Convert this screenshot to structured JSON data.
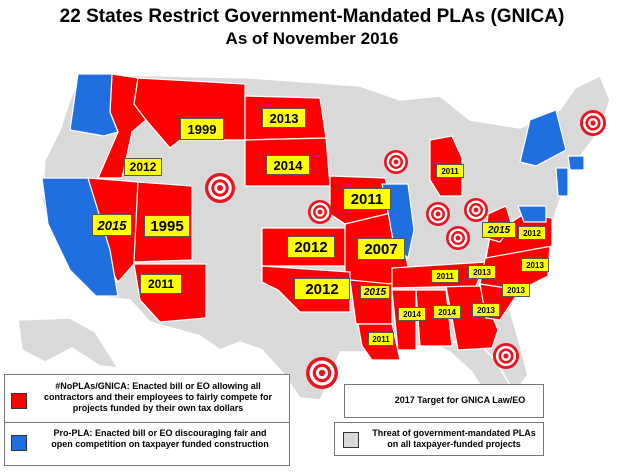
{
  "title": "22 States Restrict Government-Mandated PLAs (GNICA)",
  "subtitle": "As of November 2016",
  "colors": {
    "restrict": "#ff0000",
    "pro_pla": "#1f6fe0",
    "threat": "#d9d9d9",
    "label_bg": "#ffff00",
    "target": "#e8141e"
  },
  "state_years": {
    "WA": "2012",
    "MT": "1999",
    "ND": "2013",
    "SD": "2014",
    "NV": "2015",
    "UT": "1995",
    "AZ": "2011",
    "KS": "2012",
    "MO": "2007",
    "IA": "2011",
    "OK": "2012",
    "AR": "2015",
    "MI": "2011",
    "WV": "2015",
    "VA": "2012",
    "NC": "2013",
    "TN": "2011",
    "SC": "2013",
    "MS": "2014",
    "AL": "2014",
    "GA": "2013",
    "LA": "2011"
  },
  "legend": {
    "restrict": "#NoPLAs/GNICA: Enacted bill or EO allowing all contractors and their employees to fairly compete for projects funded by their own tax dollars",
    "pro_pla": "Pro-PLA: Enacted bill or EO discouraging fair and open competition on taxpayer funded construction",
    "target": "2017 Target for GNICA Law/EO",
    "threat": "Threat of government-mandated PLAs on all taxpayer-funded projects"
  }
}
